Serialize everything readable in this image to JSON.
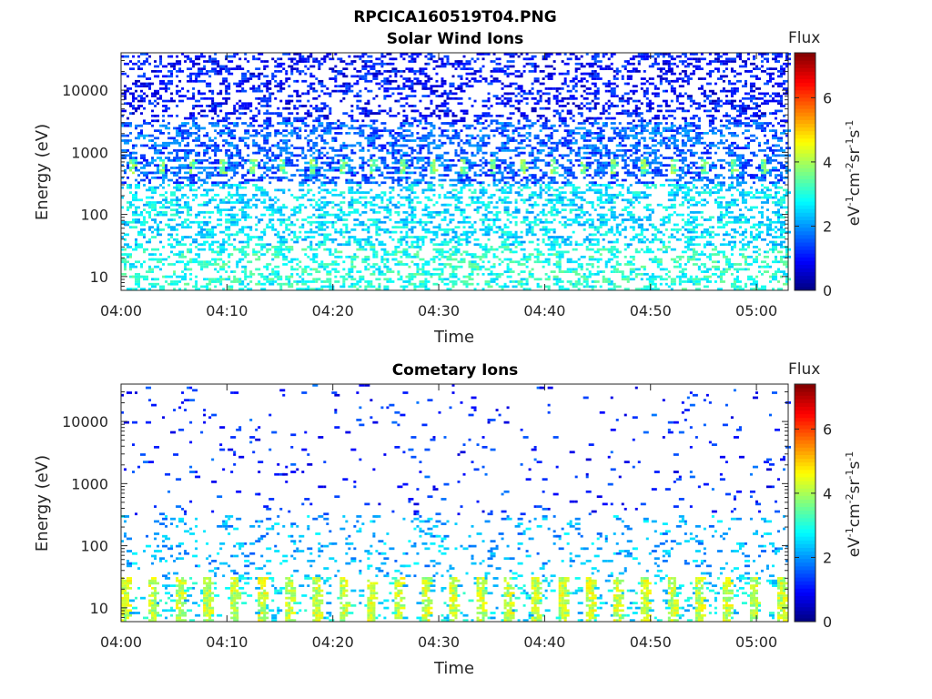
{
  "figure_title": "RPCICA160519T04.PNG",
  "colorbar": {
    "header": "Flux",
    "unit_main": "eV",
    "unit_sup1": "-1",
    "unit_main2": "cm",
    "unit_sup2": "-2",
    "unit_main3": "sr",
    "unit_sup3": "-1",
    "unit_main4": "s",
    "unit_sup4": "-1",
    "range": [
      0,
      7.4
    ],
    "ticks": [
      "0",
      "2",
      "4",
      "6"
    ],
    "colormap": "jet"
  },
  "chart_data": [
    {
      "type": "heatmap",
      "title": "Solar Wind Ions",
      "xlabel": "Time",
      "ylabel": "Energy (eV)",
      "x_range": [
        "04:00",
        "05:03"
      ],
      "y_range": [
        6,
        40000
      ],
      "y_scale": "log",
      "x_ticks": [
        "04:00",
        "04:10",
        "04:20",
        "04:30",
        "04:40",
        "04:50",
        "05:00"
      ],
      "y_ticks": [
        "10",
        "100",
        "1000",
        "10000"
      ],
      "description_bands": [
        {
          "energy_range": [
            6,
            30
          ],
          "flux_level": 3.0
        },
        {
          "energy_range": [
            30,
            300
          ],
          "flux_level": 2.5
        },
        {
          "energy_range": [
            300,
            30000
          ],
          "flux_level": 1.2
        }
      ],
      "peak_energy": 600,
      "peak_flux": 3.5
    },
    {
      "type": "heatmap",
      "title": "Cometary Ions",
      "xlabel": "Time",
      "ylabel": "Energy (eV)",
      "x_range": [
        "04:00",
        "05:03"
      ],
      "y_range": [
        6,
        40000
      ],
      "y_scale": "log",
      "x_ticks": [
        "04:00",
        "04:10",
        "04:20",
        "04:30",
        "04:40",
        "04:50",
        "05:00"
      ],
      "y_ticks": [
        "10",
        "100",
        "1000",
        "10000"
      ],
      "description_bands": [
        {
          "energy_range": [
            6,
            30
          ],
          "flux_level": 4.0
        },
        {
          "energy_range": [
            30,
            300
          ],
          "flux_level": 2.2
        },
        {
          "energy_range": [
            300,
            30000
          ],
          "flux_level": 1.3
        }
      ],
      "peak_energy": 15,
      "peak_flux": 4.5
    }
  ]
}
